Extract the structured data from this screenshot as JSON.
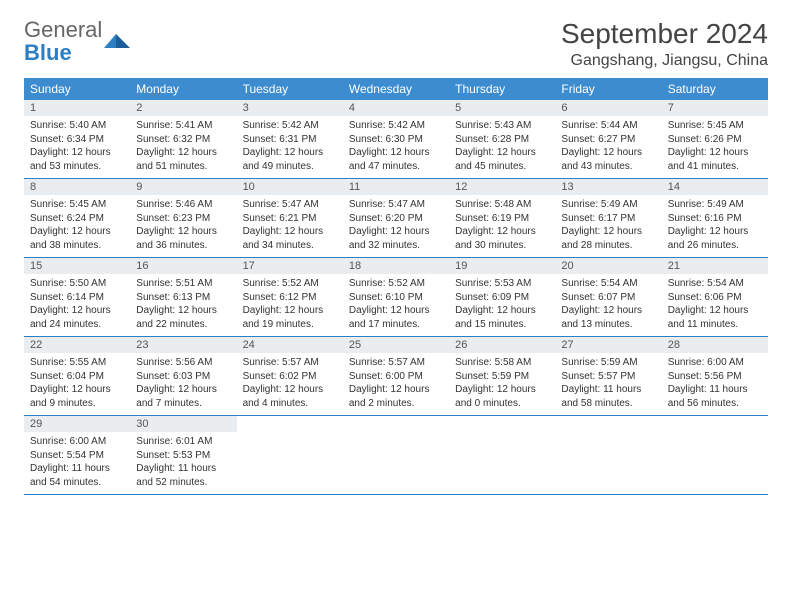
{
  "brand": {
    "general": "General",
    "blue": "Blue"
  },
  "title": "September 2024",
  "location": "Gangshang, Jiangsu, China",
  "colors": {
    "header_bg": "#3c8ccf",
    "header_text": "#ffffff",
    "daynum_bg": "#e9edf0",
    "border": "#2d7fc4",
    "text": "#333333",
    "logo_gray": "#666666",
    "logo_blue": "#2d7fc4"
  },
  "day_names": [
    "Sunday",
    "Monday",
    "Tuesday",
    "Wednesday",
    "Thursday",
    "Friday",
    "Saturday"
  ],
  "weeks": [
    [
      {
        "n": "1",
        "sr": "Sunrise: 5:40 AM",
        "ss": "Sunset: 6:34 PM",
        "dl": "Daylight: 12 hours and 53 minutes."
      },
      {
        "n": "2",
        "sr": "Sunrise: 5:41 AM",
        "ss": "Sunset: 6:32 PM",
        "dl": "Daylight: 12 hours and 51 minutes."
      },
      {
        "n": "3",
        "sr": "Sunrise: 5:42 AM",
        "ss": "Sunset: 6:31 PM",
        "dl": "Daylight: 12 hours and 49 minutes."
      },
      {
        "n": "4",
        "sr": "Sunrise: 5:42 AM",
        "ss": "Sunset: 6:30 PM",
        "dl": "Daylight: 12 hours and 47 minutes."
      },
      {
        "n": "5",
        "sr": "Sunrise: 5:43 AM",
        "ss": "Sunset: 6:28 PM",
        "dl": "Daylight: 12 hours and 45 minutes."
      },
      {
        "n": "6",
        "sr": "Sunrise: 5:44 AM",
        "ss": "Sunset: 6:27 PM",
        "dl": "Daylight: 12 hours and 43 minutes."
      },
      {
        "n": "7",
        "sr": "Sunrise: 5:45 AM",
        "ss": "Sunset: 6:26 PM",
        "dl": "Daylight: 12 hours and 41 minutes."
      }
    ],
    [
      {
        "n": "8",
        "sr": "Sunrise: 5:45 AM",
        "ss": "Sunset: 6:24 PM",
        "dl": "Daylight: 12 hours and 38 minutes."
      },
      {
        "n": "9",
        "sr": "Sunrise: 5:46 AM",
        "ss": "Sunset: 6:23 PM",
        "dl": "Daylight: 12 hours and 36 minutes."
      },
      {
        "n": "10",
        "sr": "Sunrise: 5:47 AM",
        "ss": "Sunset: 6:21 PM",
        "dl": "Daylight: 12 hours and 34 minutes."
      },
      {
        "n": "11",
        "sr": "Sunrise: 5:47 AM",
        "ss": "Sunset: 6:20 PM",
        "dl": "Daylight: 12 hours and 32 minutes."
      },
      {
        "n": "12",
        "sr": "Sunrise: 5:48 AM",
        "ss": "Sunset: 6:19 PM",
        "dl": "Daylight: 12 hours and 30 minutes."
      },
      {
        "n": "13",
        "sr": "Sunrise: 5:49 AM",
        "ss": "Sunset: 6:17 PM",
        "dl": "Daylight: 12 hours and 28 minutes."
      },
      {
        "n": "14",
        "sr": "Sunrise: 5:49 AM",
        "ss": "Sunset: 6:16 PM",
        "dl": "Daylight: 12 hours and 26 minutes."
      }
    ],
    [
      {
        "n": "15",
        "sr": "Sunrise: 5:50 AM",
        "ss": "Sunset: 6:14 PM",
        "dl": "Daylight: 12 hours and 24 minutes."
      },
      {
        "n": "16",
        "sr": "Sunrise: 5:51 AM",
        "ss": "Sunset: 6:13 PM",
        "dl": "Daylight: 12 hours and 22 minutes."
      },
      {
        "n": "17",
        "sr": "Sunrise: 5:52 AM",
        "ss": "Sunset: 6:12 PM",
        "dl": "Daylight: 12 hours and 19 minutes."
      },
      {
        "n": "18",
        "sr": "Sunrise: 5:52 AM",
        "ss": "Sunset: 6:10 PM",
        "dl": "Daylight: 12 hours and 17 minutes."
      },
      {
        "n": "19",
        "sr": "Sunrise: 5:53 AM",
        "ss": "Sunset: 6:09 PM",
        "dl": "Daylight: 12 hours and 15 minutes."
      },
      {
        "n": "20",
        "sr": "Sunrise: 5:54 AM",
        "ss": "Sunset: 6:07 PM",
        "dl": "Daylight: 12 hours and 13 minutes."
      },
      {
        "n": "21",
        "sr": "Sunrise: 5:54 AM",
        "ss": "Sunset: 6:06 PM",
        "dl": "Daylight: 12 hours and 11 minutes."
      }
    ],
    [
      {
        "n": "22",
        "sr": "Sunrise: 5:55 AM",
        "ss": "Sunset: 6:04 PM",
        "dl": "Daylight: 12 hours and 9 minutes."
      },
      {
        "n": "23",
        "sr": "Sunrise: 5:56 AM",
        "ss": "Sunset: 6:03 PM",
        "dl": "Daylight: 12 hours and 7 minutes."
      },
      {
        "n": "24",
        "sr": "Sunrise: 5:57 AM",
        "ss": "Sunset: 6:02 PM",
        "dl": "Daylight: 12 hours and 4 minutes."
      },
      {
        "n": "25",
        "sr": "Sunrise: 5:57 AM",
        "ss": "Sunset: 6:00 PM",
        "dl": "Daylight: 12 hours and 2 minutes."
      },
      {
        "n": "26",
        "sr": "Sunrise: 5:58 AM",
        "ss": "Sunset: 5:59 PM",
        "dl": "Daylight: 12 hours and 0 minutes."
      },
      {
        "n": "27",
        "sr": "Sunrise: 5:59 AM",
        "ss": "Sunset: 5:57 PM",
        "dl": "Daylight: 11 hours and 58 minutes."
      },
      {
        "n": "28",
        "sr": "Sunrise: 6:00 AM",
        "ss": "Sunset: 5:56 PM",
        "dl": "Daylight: 11 hours and 56 minutes."
      }
    ],
    [
      {
        "n": "29",
        "sr": "Sunrise: 6:00 AM",
        "ss": "Sunset: 5:54 PM",
        "dl": "Daylight: 11 hours and 54 minutes."
      },
      {
        "n": "30",
        "sr": "Sunrise: 6:01 AM",
        "ss": "Sunset: 5:53 PM",
        "dl": "Daylight: 11 hours and 52 minutes."
      },
      {
        "empty": true
      },
      {
        "empty": true
      },
      {
        "empty": true
      },
      {
        "empty": true
      },
      {
        "empty": true
      }
    ]
  ]
}
